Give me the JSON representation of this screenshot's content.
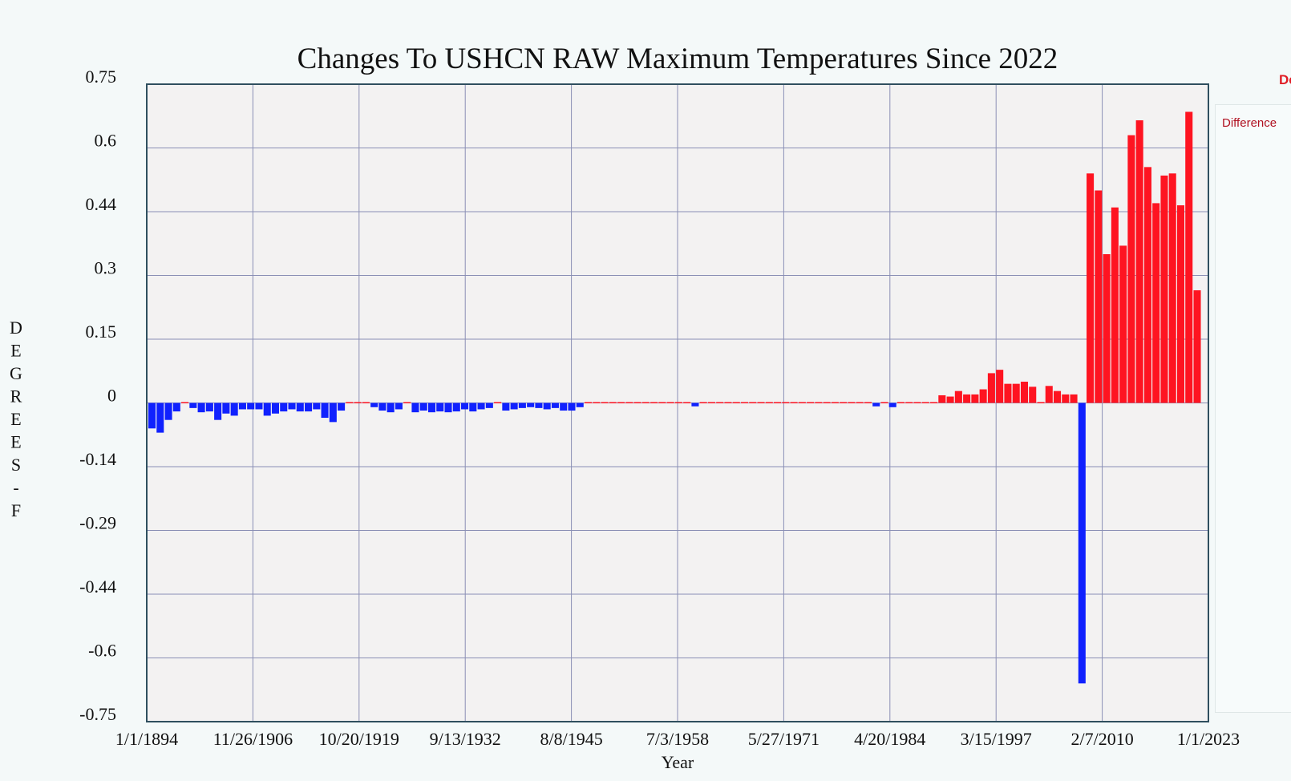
{
  "chart_data": {
    "type": "bar",
    "title": "Changes To USHCN RAW Maximum Temperatures Since 2022",
    "xlabel": "Year",
    "ylabel": "DEGREES-F",
    "ylim": [
      -0.75,
      0.75
    ],
    "xlim_years": [
      1894,
      2023
    ],
    "y_ticks": [
      "0.75",
      "0.6",
      "0.44",
      "0.3",
      "0.15",
      "0",
      "-0.14",
      "-0.29",
      "-0.44",
      "-0.6",
      "-0.75"
    ],
    "x_ticks": [
      "1/1/1894",
      "11/26/1906",
      "10/20/1919",
      "9/13/1932",
      "8/8/1945",
      "7/3/1958",
      "5/27/1971",
      "4/20/1984",
      "3/15/1997",
      "2/7/2010",
      "1/1/2023"
    ],
    "grid": true,
    "positive_color": "#fe1421",
    "negative_color": "#1021fe",
    "series": [
      {
        "name": "Difference",
        "start_year": 1894,
        "values": [
          -0.06,
          -0.07,
          -0.04,
          -0.02,
          0.002,
          -0.012,
          -0.022,
          -0.02,
          -0.04,
          -0.025,
          -0.03,
          -0.015,
          -0.015,
          -0.015,
          -0.03,
          -0.025,
          -0.02,
          -0.015,
          -0.02,
          -0.02,
          -0.015,
          -0.035,
          -0.045,
          -0.018,
          0.002,
          0.002,
          0.002,
          -0.01,
          -0.018,
          -0.022,
          -0.015,
          0.002,
          -0.022,
          -0.018,
          -0.022,
          -0.02,
          -0.022,
          -0.02,
          -0.015,
          -0.02,
          -0.015,
          -0.012,
          0.002,
          -0.018,
          -0.015,
          -0.012,
          -0.01,
          -0.012,
          -0.015,
          -0.012,
          -0.018,
          -0.018,
          -0.01,
          0.002,
          0.002,
          0.002,
          0.002,
          0.002,
          0.002,
          0.002,
          0.002,
          0.002,
          0.002,
          0.002,
          0.002,
          0.002,
          -0.008,
          0.002,
          0.002,
          0.002,
          0.002,
          0.002,
          0.002,
          0.002,
          0.002,
          0.002,
          0.002,
          0.002,
          0.002,
          0.002,
          0.002,
          0.002,
          0.002,
          0.002,
          0.002,
          0.002,
          0.002,
          0.002,
          -0.008,
          0.002,
          -0.01,
          0.002,
          0.002,
          0.002,
          0.002,
          0.002,
          0.018,
          0.015,
          0.028,
          0.02,
          0.02,
          0.032,
          0.07,
          0.078,
          0.045,
          0.045,
          0.05,
          0.038,
          0.002,
          0.04,
          0.028,
          0.02,
          0.02,
          -0.66,
          0.54,
          0.5,
          0.35,
          0.46,
          0.37,
          0.63,
          0.665,
          0.555,
          0.47,
          0.535,
          0.54,
          0.465,
          0.685,
          0.265
        ]
      }
    ]
  },
  "legend": {
    "top_label": "De",
    "entry_label": "Difference"
  }
}
